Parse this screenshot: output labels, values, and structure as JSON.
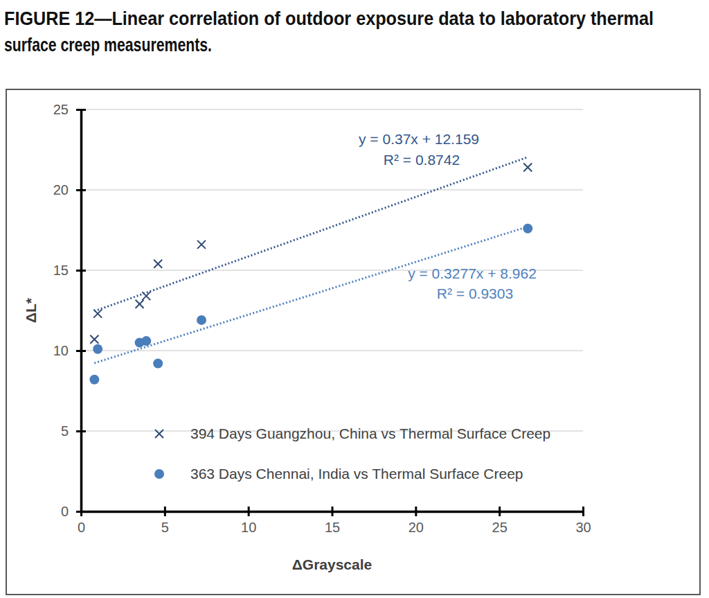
{
  "chart_data": {
    "type": "scatter",
    "title": "FIGURE 12—Linear correlation of outdoor exposure data to laboratory thermal surface creep measurements.",
    "x_label": "ΔGrayscale",
    "y_label": "ΔL*",
    "x": [
      0.8,
      1.0,
      3.5,
      3.9,
      4.6,
      7.2,
      26.7
    ],
    "series": [
      {
        "name": "394 Days Guangzhou, China vs Thermal Surface Creep",
        "color": "#2e4a75",
        "marker": "x",
        "values": [
          10.7,
          12.3,
          12.9,
          13.4,
          15.4,
          16.6,
          21.4
        ],
        "trendline": {
          "slope": 0.37,
          "intercept": 12.159,
          "equation": "y = 0.37x + 12.159",
          "r2": "R² = 0.8742",
          "line_style": "dotted",
          "color": "#34578c"
        }
      },
      {
        "name": "363 Days Chennai, India vs Thermal Surface Creep",
        "color": "#4a7ebb",
        "marker": "circle",
        "values": [
          8.2,
          10.1,
          10.5,
          10.6,
          9.2,
          11.9,
          17.6
        ],
        "trendline": {
          "slope": 0.3277,
          "intercept": 8.962,
          "equation": "y = 0.3277x + 8.962",
          "r2": "R² = 0.9303",
          "line_style": "dotted",
          "color": "#4f81bd"
        }
      }
    ],
    "xlim": [
      0,
      30
    ],
    "xticks": [
      0,
      5,
      10,
      15,
      20,
      25,
      30
    ],
    "ylim": [
      0,
      25
    ],
    "yticks": [
      0,
      5,
      10,
      15,
      20,
      25
    ],
    "grid": true,
    "legend": "bottom"
  }
}
